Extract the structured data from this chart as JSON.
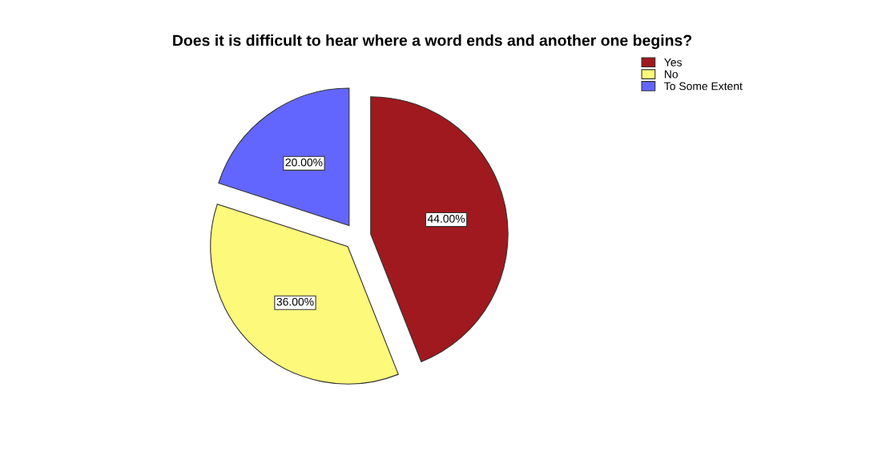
{
  "chart_data": {
    "type": "pie",
    "title": "Does it is difficult to hear where a word ends and another one begins?",
    "categories": [
      "Yes",
      "No",
      "To Some Extent"
    ],
    "values": [
      44,
      36,
      20
    ],
    "colors": [
      "#a0191e",
      "#fdf97a",
      "#6366fe"
    ],
    "value_labels": [
      "44.00%",
      "36.00%",
      "20.00%"
    ],
    "legend": "top right"
  }
}
